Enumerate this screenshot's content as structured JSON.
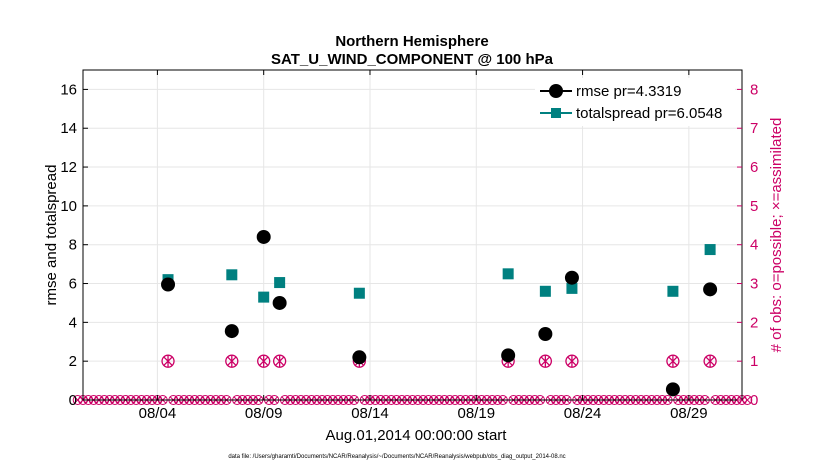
{
  "chart_data": {
    "type": "scatter",
    "title": "Northern Hemisphere",
    "subtitle": "SAT_U_WIND_COMPONENT @ 100 hPa",
    "xlabel": "Aug.01,2014 00:00:00 start",
    "ylabel": "rmse and totalspread",
    "y2label": "# of obs: o=possible; ×=assimilated",
    "xlim": [
      1,
      32
    ],
    "ylim": [
      0,
      17
    ],
    "y2lim": [
      0,
      8.5
    ],
    "x_ticks": [
      {
        "value": 4.5,
        "label": "08/04"
      },
      {
        "value": 9.5,
        "label": "08/09"
      },
      {
        "value": 14.5,
        "label": "08/14"
      },
      {
        "value": 19.5,
        "label": "08/19"
      },
      {
        "value": 24.5,
        "label": "08/24"
      },
      {
        "value": 29.5,
        "label": "08/29"
      }
    ],
    "y_ticks": [
      "0",
      "2",
      "4",
      "6",
      "8",
      "10",
      "12",
      "14",
      "16"
    ],
    "y2_ticks": [
      "0",
      "1",
      "2",
      "3",
      "4",
      "5",
      "6",
      "7",
      "8"
    ],
    "grid": true,
    "legend_position": "top-right",
    "series": [
      {
        "name": "rmse pr=4.3319",
        "color": "#000000",
        "marker": "circle",
        "x": [
          5.0,
          8.0,
          9.5,
          10.25,
          14.0,
          21.0,
          22.75,
          24.0,
          28.75,
          30.5
        ],
        "y": [
          5.95,
          3.55,
          8.4,
          5.0,
          2.2,
          2.3,
          3.4,
          6.3,
          0.55,
          5.7
        ]
      },
      {
        "name": "totalspread pr=6.0548",
        "color": "#008080",
        "marker": "square",
        "x": [
          5.0,
          8.0,
          9.5,
          10.25,
          14.0,
          21.0,
          22.75,
          24.0,
          28.75,
          30.5
        ],
        "y": [
          6.2,
          6.45,
          5.3,
          6.05,
          5.5,
          6.5,
          5.6,
          5.75,
          5.6,
          7.75
        ]
      }
    ],
    "obs_count": {
      "name": "# of obs",
      "color": "#cc0066",
      "possible_x": [
        5.0,
        8.0,
        9.5,
        10.25,
        14.0,
        21.0,
        22.75,
        24.0,
        28.75,
        30.5
      ],
      "possible_y": [
        1,
        1,
        1,
        1,
        1,
        1,
        1,
        1,
        1,
        1
      ],
      "assimilated_y": [
        1,
        1,
        1,
        1,
        1,
        1,
        1,
        1,
        1,
        1
      ]
    }
  },
  "footnote": "data file: /Users/gharamti/Documents/NCAR/Reanalysis/~/Documents/NCAR/Reanalysis/webpub/obs_diag_output_2014-08.nc"
}
